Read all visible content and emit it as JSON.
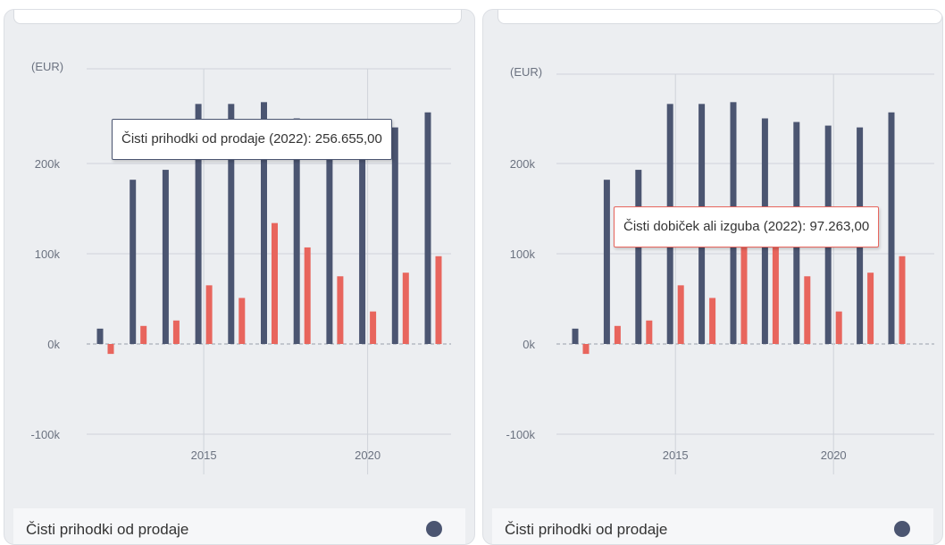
{
  "colors": {
    "revenue": "#4b5571",
    "profit": "#e8655d",
    "grid": "#cfd3da",
    "zero_line": "#9aa0aa",
    "axis_text": "#6b7280"
  },
  "chart_data": [
    {
      "type": "bar",
      "ylabel": "(EUR)",
      "ylim": [
        -100000,
        275000
      ],
      "yticks": [
        200000,
        100000,
        0,
        -100000
      ],
      "ytick_labels": [
        "200k",
        "100k",
        "0k",
        "-100k"
      ],
      "xticks": [
        2015,
        2020
      ],
      "xtick_labels": [
        "2015",
        "2020"
      ],
      "categories": [
        2012,
        2013,
        2014,
        2015,
        2016,
        2017,
        2018,
        2019,
        2020,
        2021,
        2022
      ],
      "series": [
        {
          "name": "Čisti prihodki od prodaje",
          "color": "#4b5571",
          "values": [
            17000,
            182000,
            193000,
            266000,
            266000,
            268000,
            250000,
            246000,
            242000,
            240000,
            256655
          ]
        },
        {
          "name": "Čisti dobiček ali izguba",
          "color": "#e8655d",
          "values": [
            -11000,
            20000,
            26000,
            65000,
            51000,
            134000,
            107000,
            75000,
            36000,
            79000,
            97263
          ]
        }
      ],
      "tooltip": "Čisti prihodki od prodaje (2022): 256.655,00",
      "legend": "Čisti prihodki od prodaje"
    },
    {
      "type": "bar",
      "ylabel": "(EUR)",
      "ylim": [
        -100000,
        275000
      ],
      "yticks": [
        200000,
        100000,
        0,
        -100000
      ],
      "ytick_labels": [
        "200k",
        "100k",
        "0k",
        "-100k"
      ],
      "xticks": [
        2015,
        2020
      ],
      "xtick_labels": [
        "2015",
        "2020"
      ],
      "categories": [
        2012,
        2013,
        2014,
        2015,
        2016,
        2017,
        2018,
        2019,
        2020,
        2021,
        2022
      ],
      "series": [
        {
          "name": "Čisti prihodki od prodaje",
          "color": "#4b5571",
          "values": [
            17000,
            182000,
            193000,
            266000,
            266000,
            268000,
            250000,
            246000,
            242000,
            240000,
            256655
          ]
        },
        {
          "name": "Čisti dobiček ali izguba",
          "color": "#e8655d",
          "values": [
            -11000,
            20000,
            26000,
            65000,
            51000,
            134000,
            107000,
            75000,
            36000,
            79000,
            97263
          ]
        }
      ],
      "tooltip": "Čisti dobiček ali izguba (2022): 97.263,00",
      "legend": "Čisti prihodki od prodaje"
    }
  ]
}
